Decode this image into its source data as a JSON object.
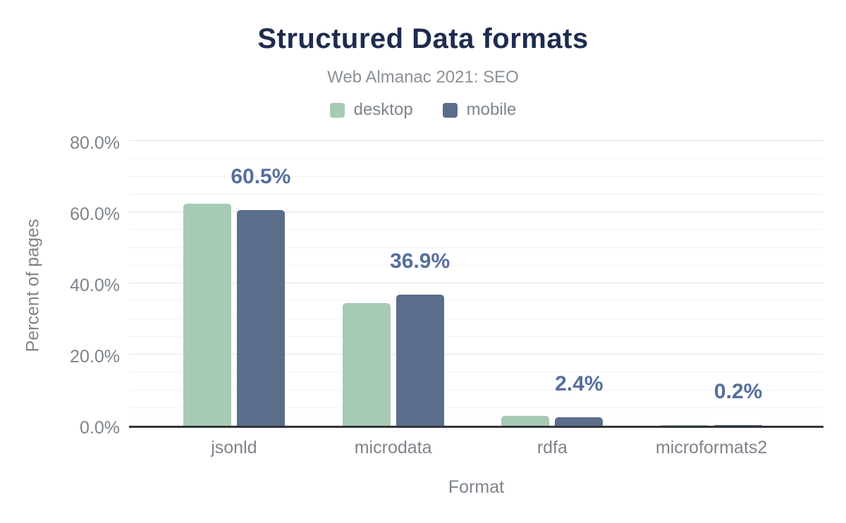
{
  "header": {
    "title": "Structured Data formats",
    "subtitle": "Web Almanac 2021: SEO"
  },
  "legend": {
    "items": [
      {
        "label": "desktop",
        "color": "#a7cab4"
      },
      {
        "label": "mobile",
        "color": "#5a6e8c"
      }
    ]
  },
  "axes": {
    "y_title": "Percent of pages",
    "x_title": "Format",
    "y_tick_labels": [
      "80.0%",
      "60.0%",
      "40.0%",
      "20.0%",
      "0.0%"
    ]
  },
  "colors": {
    "title": "#1f2b4e",
    "subtitle": "#8b9198",
    "axis_text": "#7e848c",
    "value_label": "#566e9b",
    "axis_line": "#333538",
    "gridline_major": "#e4e4e4",
    "gridline_minor": "#f3f3f3",
    "desktop": "#a7cab4",
    "mobile": "#5a6e8c",
    "background": "#ffffff"
  },
  "chart_data": {
    "type": "bar",
    "title": "Structured Data formats",
    "subtitle": "Web Almanac 2021: SEO",
    "categories": [
      "jsonld",
      "microdata",
      "rdfa",
      "microformats2"
    ],
    "series": [
      {
        "name": "desktop",
        "color": "#a7cab4",
        "values": [
          62.3,
          34.5,
          2.8,
          0.2
        ]
      },
      {
        "name": "mobile",
        "color": "#5a6e8c",
        "values": [
          60.5,
          36.9,
          2.4,
          0.2
        ]
      }
    ],
    "value_labels": [
      "60.5%",
      "36.9%",
      "2.4%",
      "0.2%"
    ],
    "value_label_anchor_series": "mobile",
    "xlabel": "Format",
    "ylabel": "Percent of pages",
    "ylim": [
      0,
      80
    ],
    "y_major_step": 20,
    "y_minor_step": 5,
    "grid": true,
    "legend_position": "top"
  }
}
